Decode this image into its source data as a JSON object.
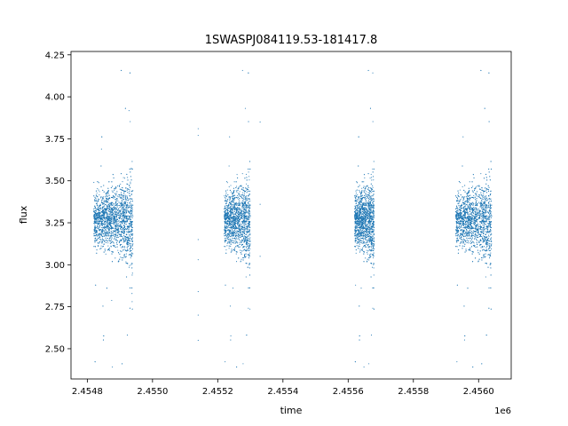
{
  "chart_data": {
    "type": "scatter",
    "title": "1SWASPJ084119.53-181417.8",
    "xlabel": "time",
    "ylabel": "flux",
    "x_offset_label": "1e6",
    "xlim": [
      2.45475,
      2.4561
    ],
    "ylim": [
      2.32,
      4.27
    ],
    "grid": false,
    "marker_color": "#1f77b4",
    "x_ticks": [
      2.4548,
      2.455,
      2.4552,
      2.4554,
      2.4556,
      2.4558,
      2.456
    ],
    "x_tick_labels": [
      "2.4548",
      "2.4550",
      "2.4552",
      "2.4554",
      "2.4556",
      "2.4558",
      "2.4560"
    ],
    "y_ticks": [
      2.5,
      2.75,
      3.0,
      3.25,
      3.5,
      3.75,
      4.0,
      4.25
    ],
    "y_tick_labels": [
      "2.50",
      "2.75",
      "3.00",
      "3.25",
      "3.50",
      "3.75",
      "4.00",
      "4.25"
    ],
    "clusters": [
      {
        "x_start": 2.45482,
        "x_end": 2.45494,
        "y_center": 3.27,
        "count": 2600
      },
      {
        "x_start": 2.45522,
        "x_end": 2.4553,
        "y_center": 3.27,
        "count": 2000
      },
      {
        "x_start": 2.45562,
        "x_end": 2.45568,
        "y_center": 3.27,
        "count": 1800
      },
      {
        "x_start": 2.45593,
        "x_end": 2.45604,
        "y_center": 3.27,
        "count": 2400
      }
    ],
    "sparse_points": [
      {
        "x": 2.45514,
        "y": 3.81
      },
      {
        "x": 2.45514,
        "y": 3.77
      },
      {
        "x": 2.45514,
        "y": 3.15
      },
      {
        "x": 2.45514,
        "y": 3.03
      },
      {
        "x": 2.45514,
        "y": 2.84
      },
      {
        "x": 2.45514,
        "y": 2.7
      },
      {
        "x": 2.45514,
        "y": 2.55
      },
      {
        "x": 2.45533,
        "y": 3.85
      },
      {
        "x": 2.45533,
        "y": 3.36
      },
      {
        "x": 2.45533,
        "y": 3.05
      }
    ]
  }
}
